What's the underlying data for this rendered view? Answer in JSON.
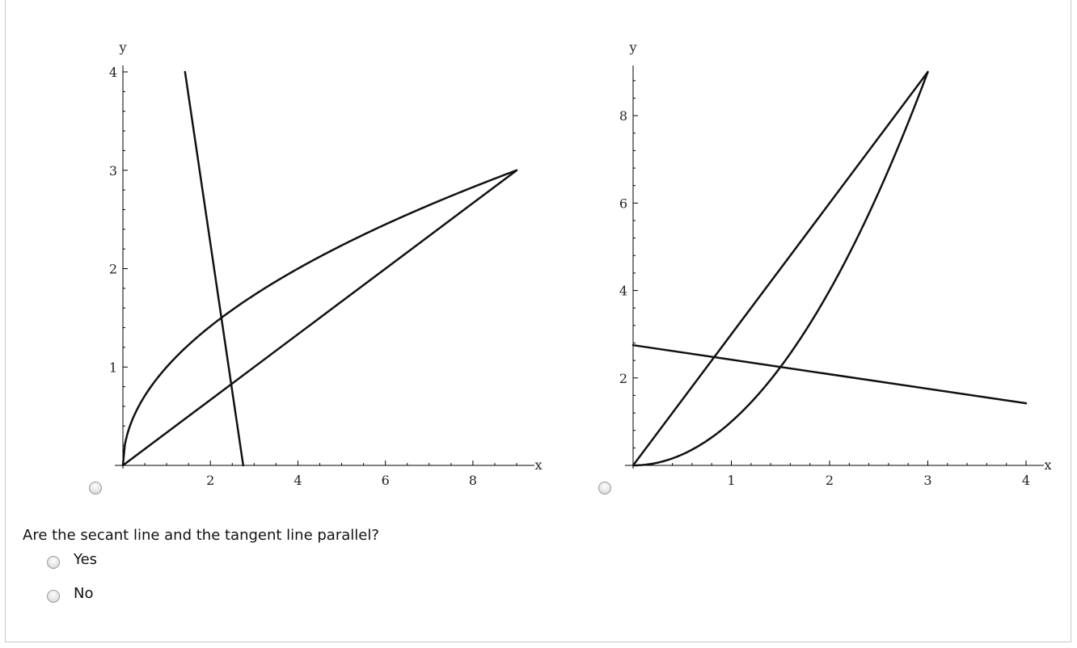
{
  "question": "Are the secant line and the tangent line parallel?",
  "choices": [
    {
      "label": "Yes"
    },
    {
      "label": "No"
    }
  ],
  "chart_data": [
    {
      "type": "line",
      "xlabel": "x",
      "ylabel": "y",
      "xlim": [
        0,
        9
      ],
      "ylim": [
        0,
        4
      ],
      "x_ticks": [
        2,
        4,
        6,
        8
      ],
      "y_ticks": [
        1,
        2,
        3,
        4
      ],
      "series": [
        {
          "kind": "function",
          "expr": "sqrt",
          "domain": [
            0,
            9
          ]
        },
        {
          "kind": "segment",
          "points": [
            [
              0,
              0
            ],
            [
              9,
              3
            ]
          ]
        },
        {
          "kind": "segment",
          "points": [
            [
              1.42,
              4
            ],
            [
              2.75,
              0
            ]
          ]
        }
      ]
    },
    {
      "type": "line",
      "xlabel": "x",
      "ylabel": "y",
      "xlim": [
        0,
        4
      ],
      "ylim": [
        0,
        9
      ],
      "x_ticks": [
        1,
        2,
        3,
        4
      ],
      "y_ticks": [
        2,
        4,
        6,
        8
      ],
      "series": [
        {
          "kind": "function",
          "expr": "square",
          "domain": [
            0,
            3
          ]
        },
        {
          "kind": "segment",
          "points": [
            [
              0,
              0
            ],
            [
              3,
              9
            ]
          ]
        },
        {
          "kind": "segment",
          "points": [
            [
              0,
              2.75
            ],
            [
              4,
              1.42
            ]
          ]
        }
      ]
    }
  ]
}
